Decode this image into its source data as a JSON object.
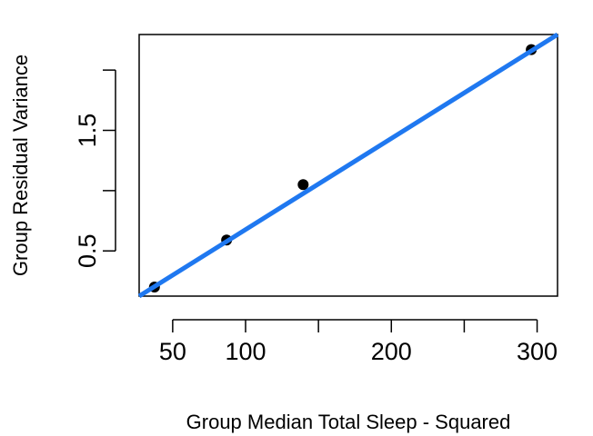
{
  "chart_data": {
    "type": "scatter",
    "xlabel": "Group Median Total Sleep - Squared",
    "ylabel": "Group Residual Variance",
    "xlim": [
      27,
      314
    ],
    "ylim": [
      0.125,
      2.295
    ],
    "x_ticks": [
      50,
      100,
      150,
      200,
      250,
      300
    ],
    "x_tick_labels": [
      "50",
      "100",
      "",
      "200",
      "",
      "300"
    ],
    "y_ticks": [
      0.5,
      1.0,
      1.5,
      2.0
    ],
    "y_tick_labels": [
      "0.5",
      "",
      "1.5",
      ""
    ],
    "points": [
      {
        "x": 37.5,
        "y": 0.2
      },
      {
        "x": 87,
        "y": 0.59
      },
      {
        "x": 139.5,
        "y": 1.05
      },
      {
        "x": 296,
        "y": 2.17
      }
    ],
    "fit_line": {
      "x0": 27,
      "y0": 0.125,
      "x1": 314,
      "y1": 2.295
    },
    "grid": false,
    "point_color": "#000000",
    "line_color": "#1f78f0"
  }
}
